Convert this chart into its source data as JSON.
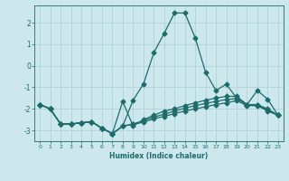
{
  "xlabel": "Humidex (Indice chaleur)",
  "background_color": "#cce8ec",
  "grid_color": "#aacdd4",
  "line_color": "#1e6b6b",
  "x": [
    0,
    1,
    2,
    3,
    4,
    5,
    6,
    7,
    8,
    9,
    10,
    11,
    12,
    13,
    14,
    15,
    16,
    17,
    18,
    19,
    20,
    21,
    22,
    23
  ],
  "lines": [
    [
      -1.8,
      -2.0,
      -2.7,
      -2.7,
      -2.65,
      -2.6,
      -2.9,
      -3.15,
      -2.8,
      -1.6,
      -0.85,
      0.6,
      1.5,
      2.45,
      2.45,
      1.3,
      -0.3,
      -1.15,
      -0.85,
      -1.5,
      -1.8,
      -1.15,
      -1.55,
      -2.3
    ],
    [
      -1.8,
      -2.0,
      -2.7,
      -2.7,
      -2.65,
      -2.6,
      -2.9,
      -3.15,
      -1.65,
      -2.8,
      -2.5,
      -2.3,
      -2.1,
      -2.0,
      -1.85,
      -1.72,
      -1.6,
      -1.5,
      -1.42,
      -1.42,
      -1.8,
      -1.8,
      -2.0,
      -2.3
    ],
    [
      -1.8,
      -2.0,
      -2.7,
      -2.7,
      -2.65,
      -2.6,
      -2.9,
      -3.15,
      -2.8,
      -2.7,
      -2.55,
      -2.38,
      -2.25,
      -2.1,
      -1.97,
      -1.85,
      -1.75,
      -1.65,
      -1.57,
      -1.52,
      -1.82,
      -1.82,
      -2.05,
      -2.3
    ],
    [
      -1.8,
      -2.0,
      -2.7,
      -2.7,
      -2.65,
      -2.6,
      -2.9,
      -3.15,
      -2.8,
      -2.72,
      -2.62,
      -2.46,
      -2.35,
      -2.22,
      -2.1,
      -2.0,
      -1.9,
      -1.8,
      -1.72,
      -1.62,
      -1.85,
      -1.85,
      -2.1,
      -2.3
    ]
  ],
  "ylim": [
    -3.5,
    2.8
  ],
  "xlim": [
    -0.5,
    23.5
  ],
  "yticks": [
    -3,
    -2,
    -1,
    0,
    1,
    2
  ],
  "xticks": [
    0,
    1,
    2,
    3,
    4,
    5,
    6,
    7,
    8,
    9,
    10,
    11,
    12,
    13,
    14,
    15,
    16,
    17,
    18,
    19,
    20,
    21,
    22,
    23
  ],
  "markersize": 2.5,
  "linewidth": 0.9
}
